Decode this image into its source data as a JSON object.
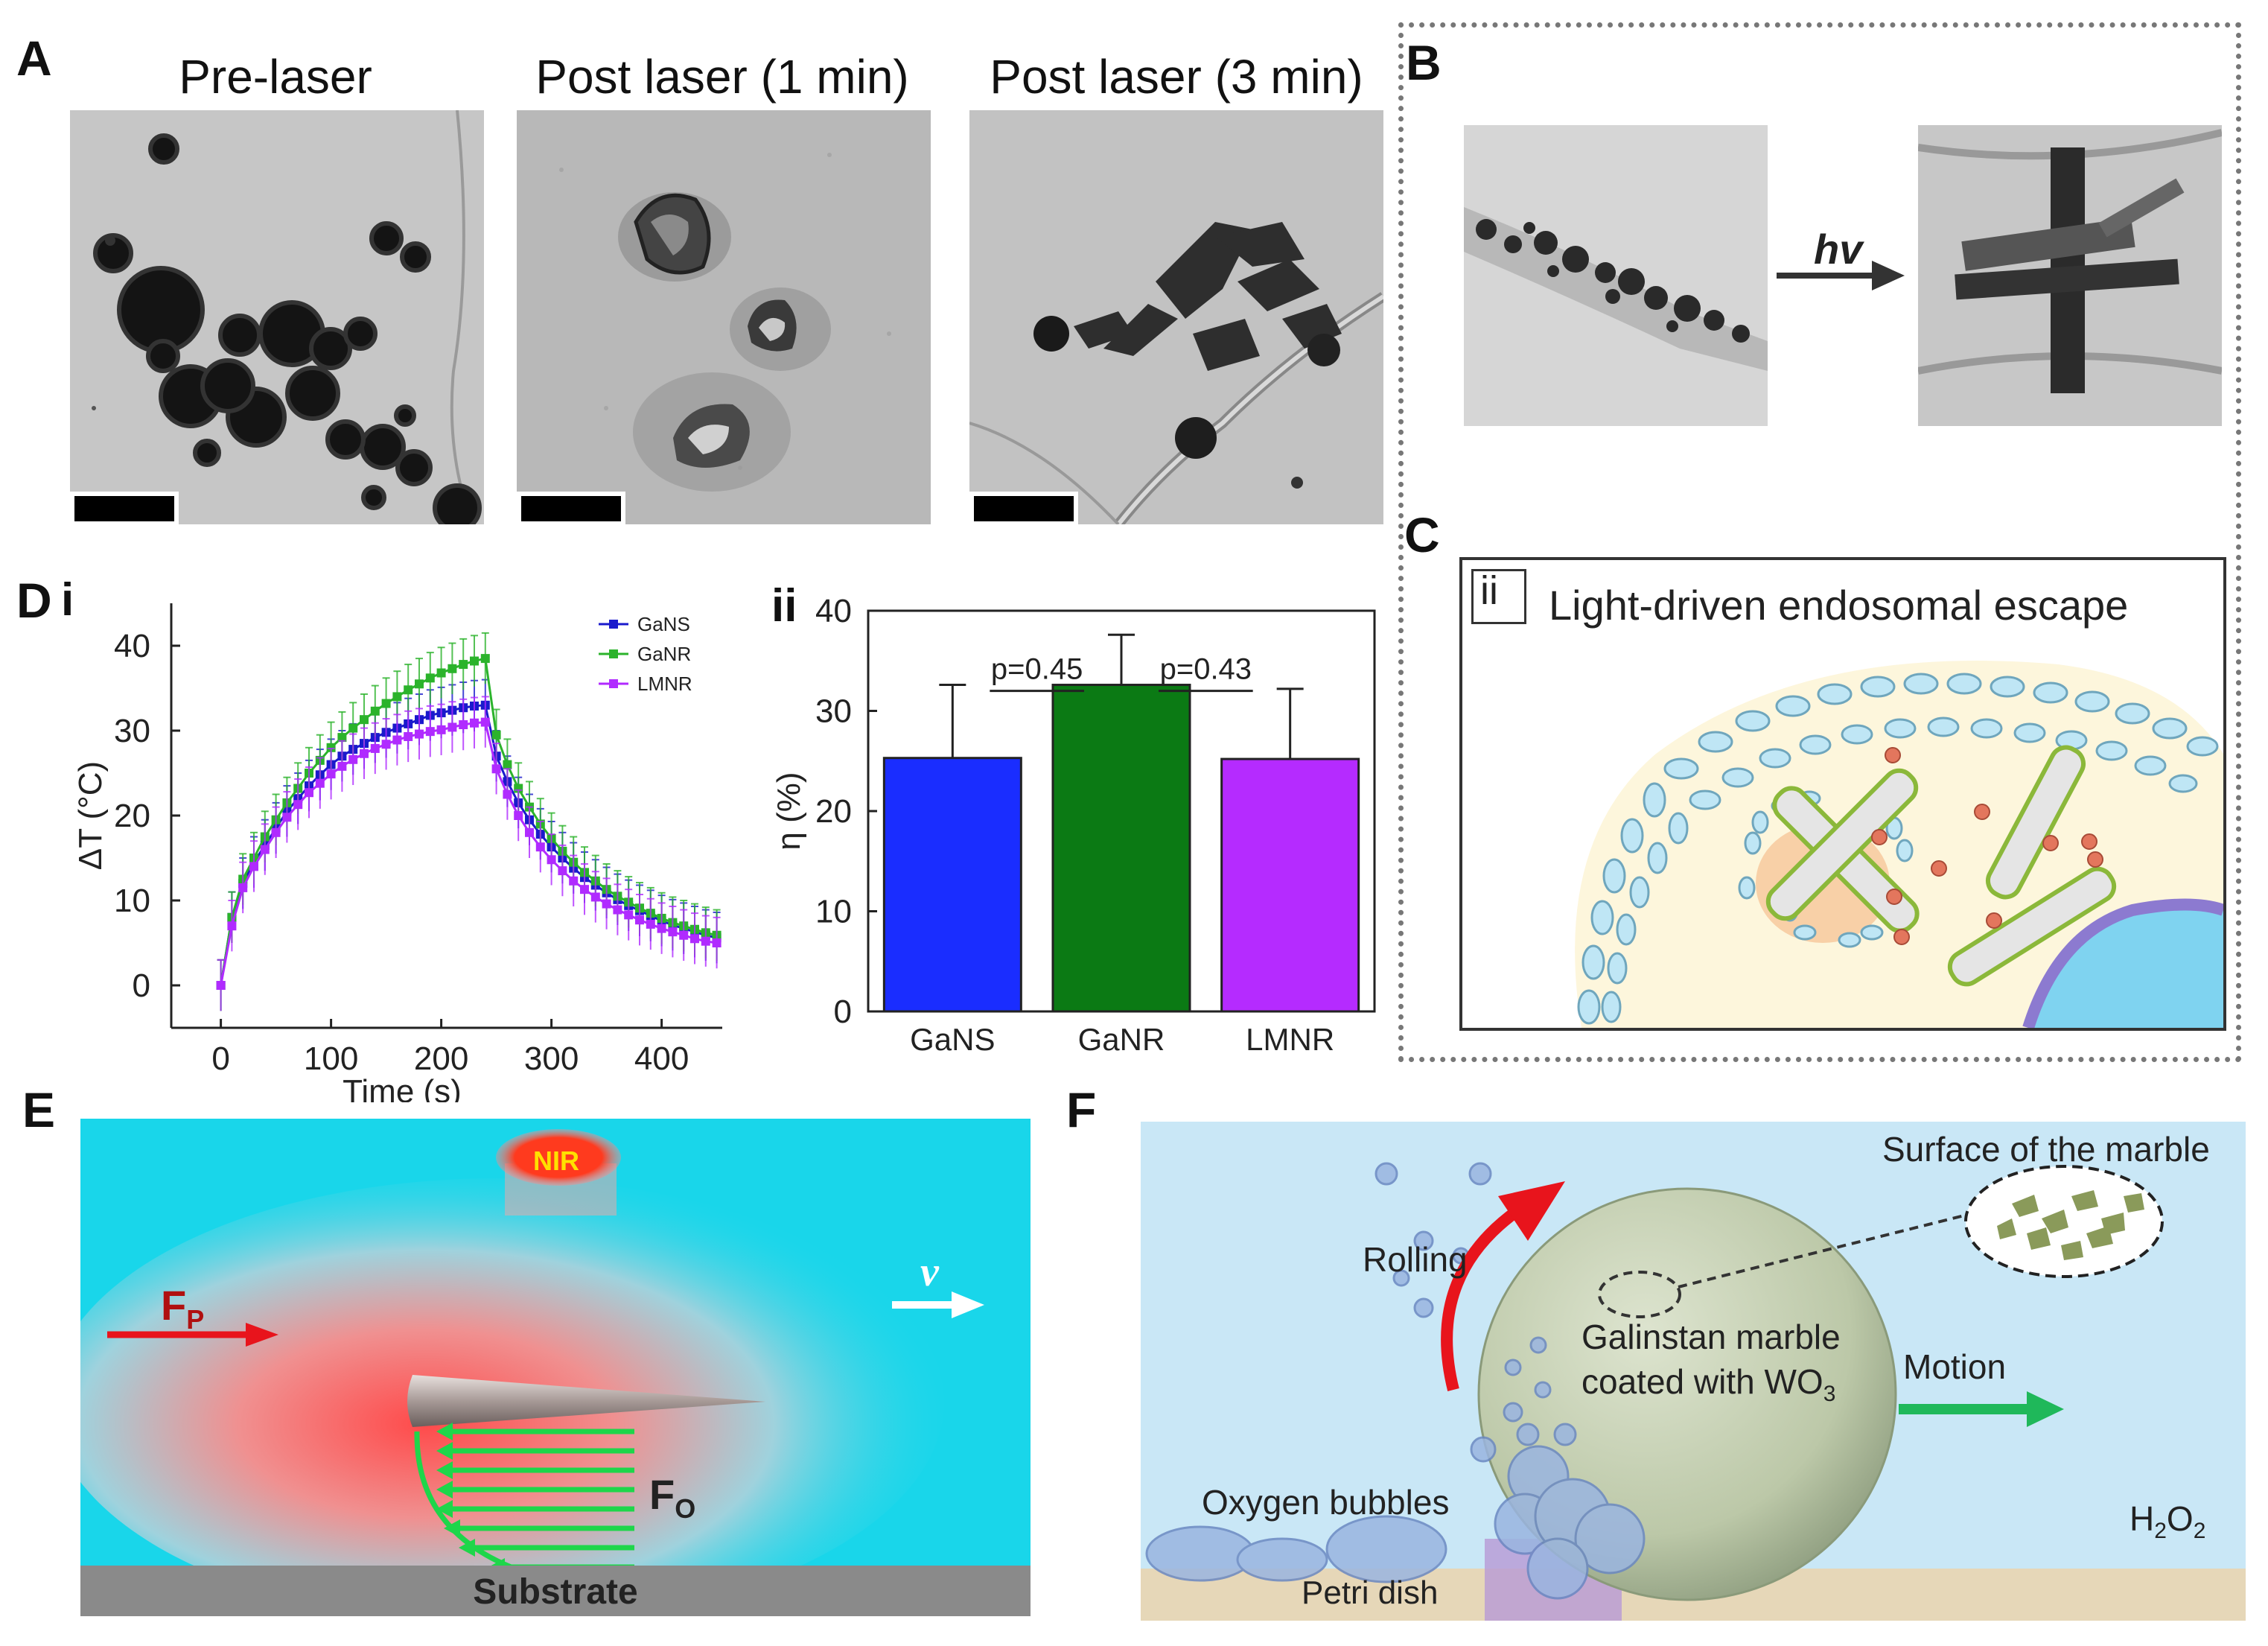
{
  "panels": {
    "A": {
      "letter": "A",
      "titles": [
        "Pre-laser",
        "Post laser (1 min)",
        "Post laser (3 min)"
      ]
    },
    "B": {
      "letter": "B",
      "arrow_label": "hv"
    },
    "C": {
      "letter": "C",
      "sub_label": "ii",
      "title": "Light-driven endosomal escape"
    },
    "D": {
      "letter": "D",
      "i": {
        "label": "i"
      },
      "ii": {
        "label": "ii",
        "p1": "p=0.45",
        "p2": "p=0.43"
      }
    },
    "E": {
      "letter": "E",
      "nir": "NIR",
      "fp": "F",
      "fp_sub": "P",
      "fo": "F",
      "fo_sub": "O",
      "v": "v",
      "substrate": "Substrate"
    },
    "F": {
      "letter": "F",
      "surface": "Surface of the marble",
      "rolling": "Rolling",
      "marble_line1": "Galinstan marble",
      "marble_line2": "coated with WO",
      "marble_sub": "3",
      "motion": "Motion",
      "bubbles": "Oxygen bubbles",
      "h2o2_a": "H",
      "h2o2_b": "2",
      "h2o2_c": "O",
      "h2o2_d": "2",
      "petri": "Petri dish"
    }
  },
  "chart_data": [
    {
      "type": "line",
      "title": "",
      "xlabel": "Time (s)",
      "ylabel": "ΔT (°C)",
      "xlim": [
        -45,
        455
      ],
      "ylim": [
        -5,
        45
      ],
      "xticks": [
        0,
        100,
        200,
        300,
        400
      ],
      "yticks": [
        0,
        10,
        20,
        30,
        40
      ],
      "legend": [
        "GaNS",
        "GaNR",
        "LMNR"
      ],
      "colors": [
        "#1a1acc",
        "#2bb32b",
        "#b02bff"
      ],
      "x": [
        0,
        10,
        20,
        30,
        40,
        50,
        60,
        70,
        80,
        90,
        100,
        110,
        120,
        130,
        140,
        150,
        160,
        170,
        180,
        190,
        200,
        210,
        220,
        230,
        240,
        250,
        260,
        270,
        280,
        290,
        300,
        310,
        320,
        330,
        340,
        350,
        360,
        370,
        380,
        390,
        400,
        410,
        420,
        430,
        440,
        450
      ],
      "series": [
        {
          "name": "GaNS",
          "values": [
            0,
            8,
            12,
            14.5,
            16.5,
            18.5,
            20.5,
            22,
            23.5,
            24.8,
            26,
            27,
            27.8,
            28.5,
            29.2,
            29.8,
            30.3,
            30.8,
            31.3,
            31.8,
            32.1,
            32.4,
            32.7,
            32.9,
            33,
            27,
            24,
            21.5,
            19.5,
            17.8,
            16.3,
            15,
            13.8,
            12.7,
            11.8,
            10.9,
            10.1,
            9.4,
            8.8,
            8.2,
            7.6,
            7.1,
            6.7,
            6.3,
            5.9,
            5.6
          ],
          "error": 3
        },
        {
          "name": "GaNR",
          "values": [
            0,
            8,
            12.5,
            15,
            17.5,
            19.5,
            21.5,
            23.2,
            25,
            26.5,
            28,
            29.2,
            30.3,
            31.3,
            32.3,
            33.2,
            34,
            34.8,
            35.5,
            36.2,
            36.8,
            37.3,
            37.8,
            38.2,
            38.5,
            29.5,
            26,
            23.2,
            21,
            19,
            17.3,
            15.8,
            14.5,
            13.3,
            12.3,
            11.3,
            10.5,
            9.8,
            9.1,
            8.5,
            7.9,
            7.4,
            7,
            6.6,
            6.2,
            5.9
          ],
          "error": 3
        },
        {
          "name": "LMNR",
          "values": [
            0,
            7,
            11.5,
            14,
            16,
            18,
            19.8,
            21.3,
            22.7,
            23.8,
            24.9,
            25.8,
            26.6,
            27.3,
            27.9,
            28.4,
            28.9,
            29.3,
            29.6,
            29.9,
            30.1,
            30.4,
            30.7,
            30.9,
            31,
            25.5,
            22.5,
            20,
            18,
            16.3,
            14.8,
            13.5,
            12.3,
            11.3,
            10.4,
            9.6,
            8.9,
            8.3,
            7.7,
            7.2,
            6.7,
            6.3,
            5.9,
            5.5,
            5.2,
            5
          ],
          "error": 3
        }
      ]
    },
    {
      "type": "bar",
      "title": "",
      "xlabel": "",
      "ylabel": "η (%)",
      "ylim": [
        0,
        40
      ],
      "yticks": [
        0,
        10,
        20,
        30,
        40
      ],
      "categories": [
        "GaNS",
        "GaNR",
        "LMNR"
      ],
      "values": [
        25.3,
        32.6,
        25.2
      ],
      "errors": [
        7.3,
        5.0,
        7.0
      ],
      "colors": [
        "#1a2dff",
        "#0b7a14",
        "#b52bff"
      ]
    }
  ]
}
